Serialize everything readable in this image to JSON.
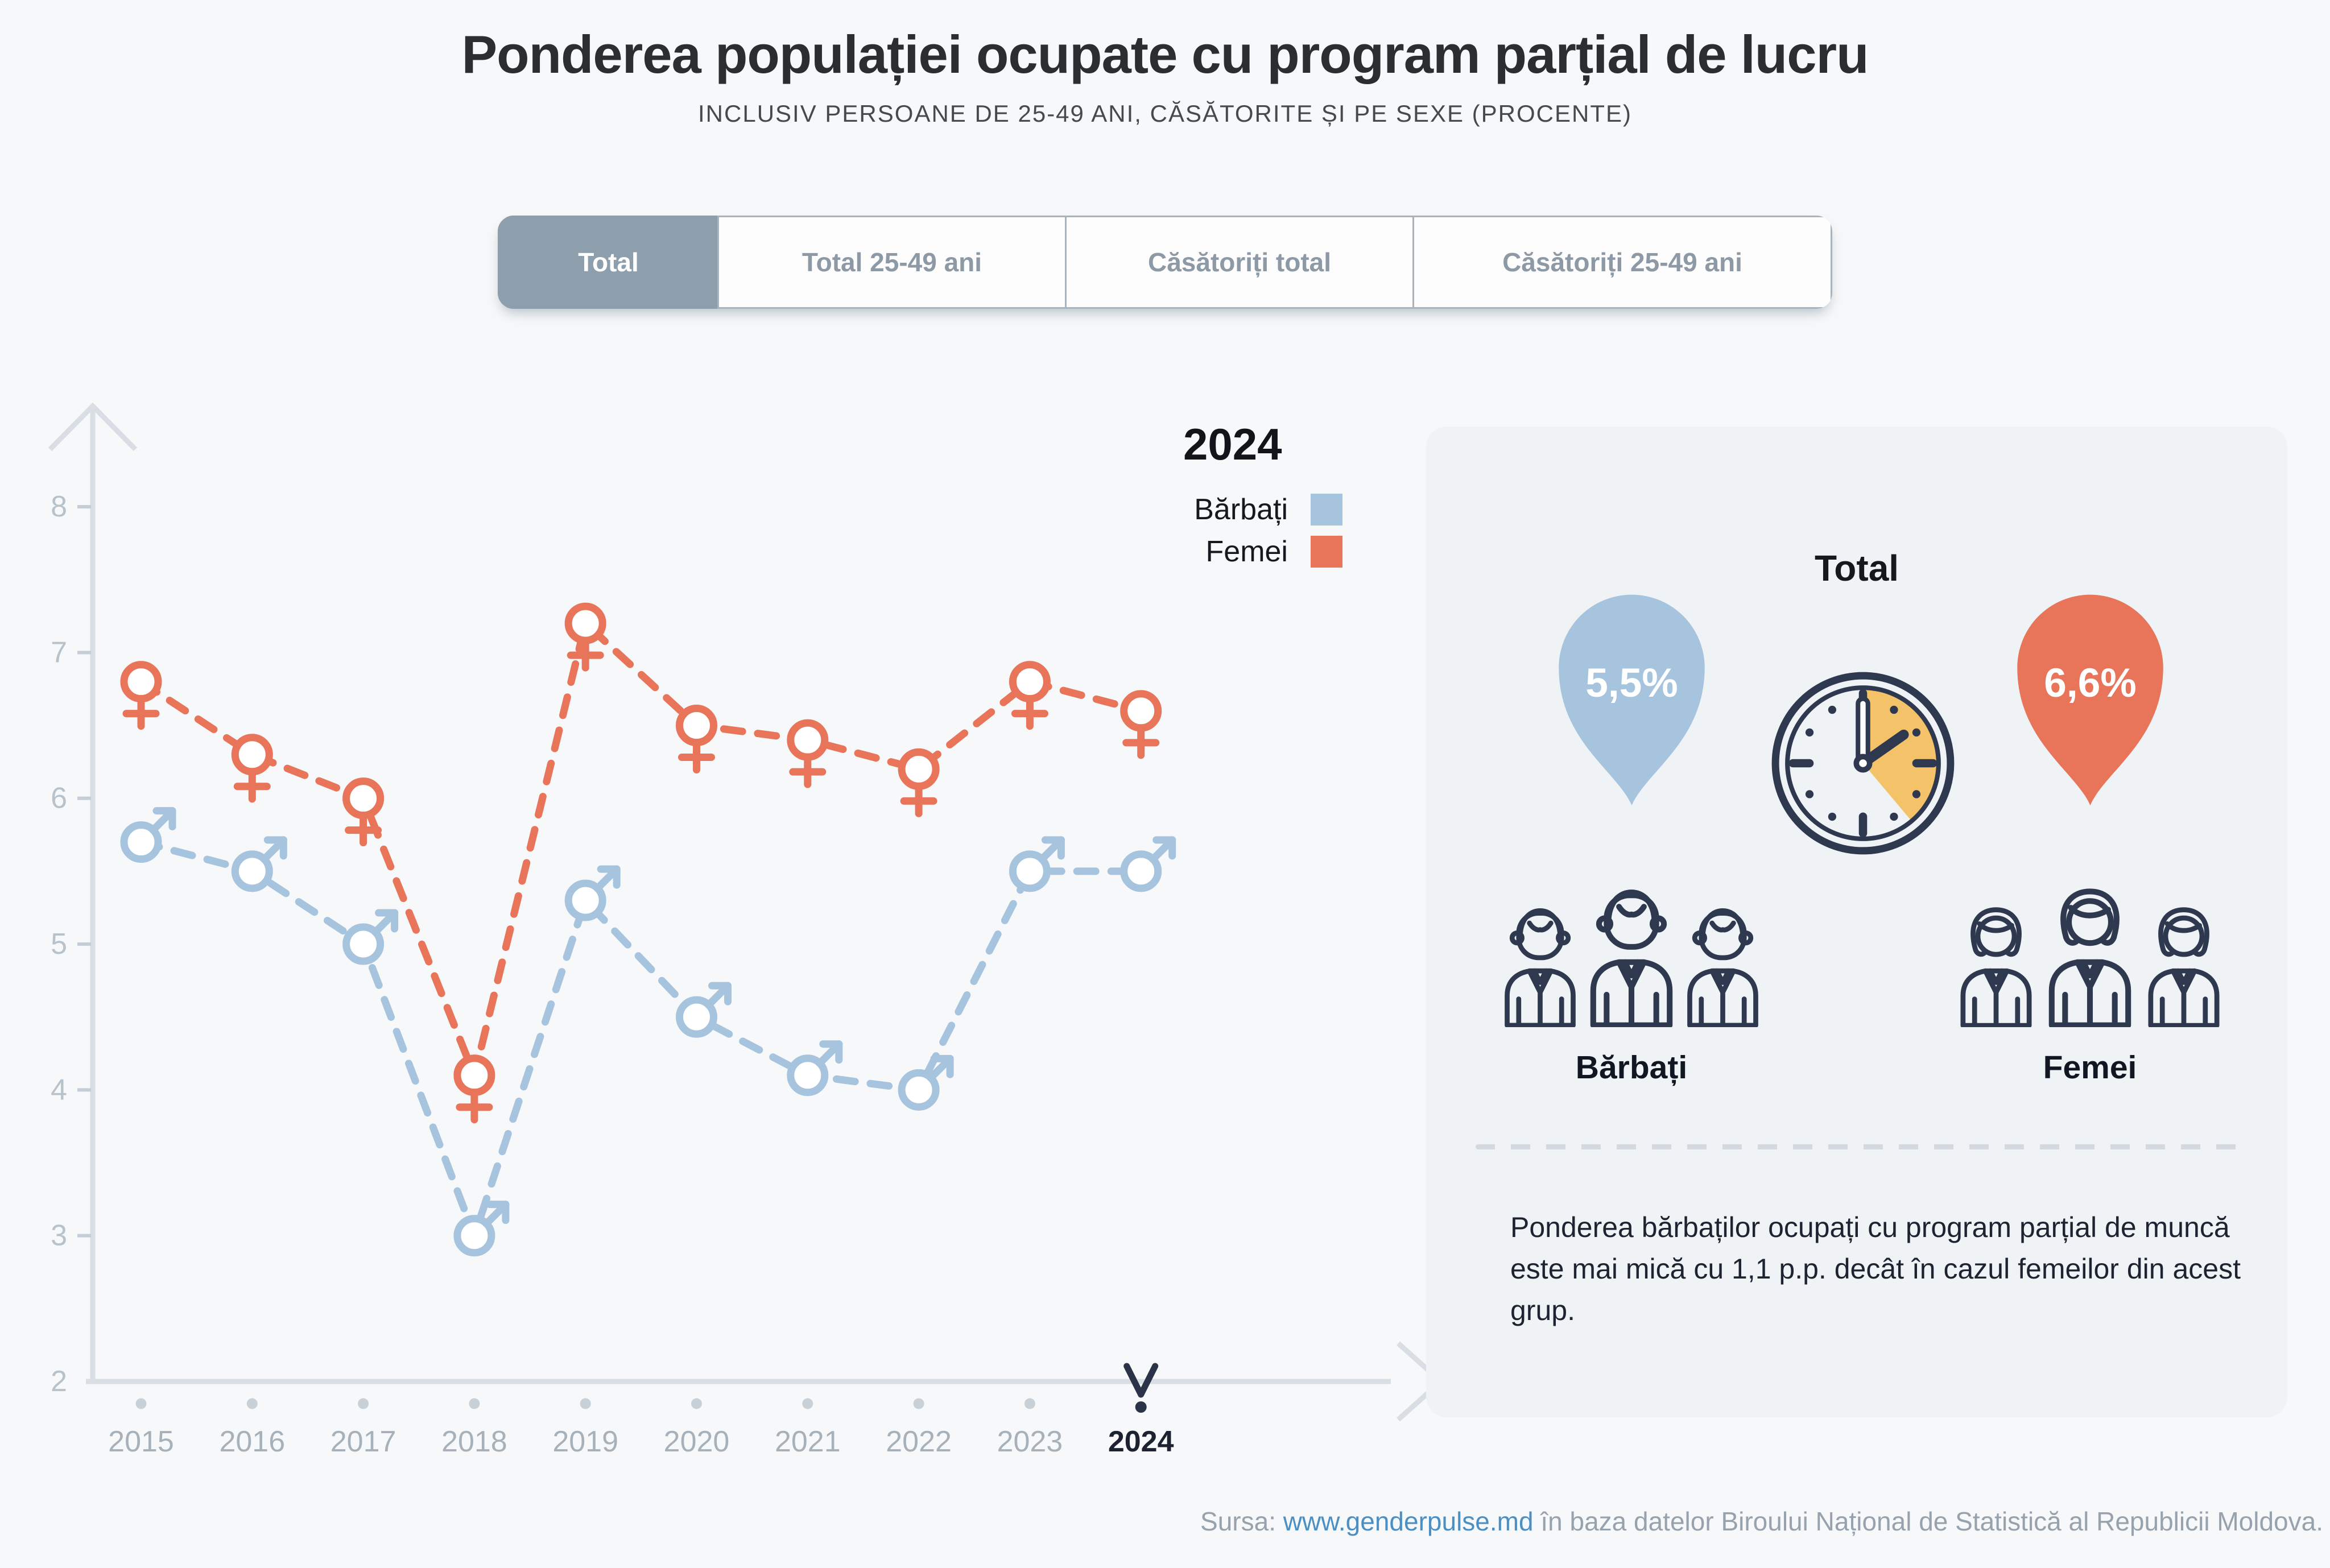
{
  "title": "Ponderea populației ocupate cu program parțial de lucru",
  "subtitle": "INCLUSIV PERSOANE DE 25-49 ANI, CĂSĂTORITE ȘI PE SEXE (PROCENTE)",
  "tabs": [
    {
      "label": "Total",
      "selected": true
    },
    {
      "label": "Total 25-49 ani",
      "selected": false
    },
    {
      "label": "Căsătoriți total",
      "selected": false
    },
    {
      "label": "Căsătoriți 25-49 ani",
      "selected": false
    }
  ],
  "legend": {
    "year": "2024",
    "items": [
      {
        "label": "Bărbați",
        "color": "#a7c4de"
      },
      {
        "label": "Femei",
        "color": "#e8745a"
      }
    ]
  },
  "chart_data": {
    "type": "line",
    "x": [
      2015,
      2016,
      2017,
      2018,
      2019,
      2020,
      2021,
      2022,
      2023,
      2024
    ],
    "series": [
      {
        "name": "Femei",
        "marker": "female",
        "color": "#e8745a",
        "values": [
          6.8,
          6.3,
          6.0,
          4.1,
          7.2,
          6.5,
          6.4,
          6.2,
          6.8,
          6.6
        ]
      },
      {
        "name": "Bărbați",
        "marker": "male",
        "color": "#a7c4de",
        "values": [
          5.7,
          5.5,
          5.0,
          3.0,
          5.3,
          4.5,
          4.1,
          4.0,
          5.5,
          5.5
        ]
      }
    ],
    "ylim": [
      2,
      8
    ],
    "yticks": [
      2,
      3,
      4,
      5,
      6,
      7,
      8
    ],
    "highlighted_year": 2024,
    "grid": false,
    "legend_position": "top-right",
    "line_style": "dashed",
    "title": "",
    "xlabel": "",
    "ylabel": ""
  },
  "panel": {
    "heading": "Total",
    "male": {
      "value": "5,5%",
      "label": "Bărbați",
      "color": "#a7c4de"
    },
    "female": {
      "value": "6,6%",
      "label": "Femei",
      "color": "#e8745a"
    },
    "note": "Ponderea bărbaților ocupați cu program parțial de muncă este mai mică cu 1,1 p.p. decât în cazul femeilor din acest grup."
  },
  "source": {
    "prefix": "Sursa:",
    "link": "www.genderpulse.md",
    "suffix": "în baza datelor Biroului Național de Statistică al Republicii Moldova."
  },
  "colors": {
    "page_bg": "#f7f8f9",
    "panel_bg": "#f0f3f6",
    "male": "#a7c4de",
    "female": "#e8745a",
    "navy": "#2e3950",
    "clock_wedge": "#f4c369",
    "axis": "#d8dee3",
    "selected_tab": "#8d9eac",
    "link": "#4c8fc3"
  }
}
